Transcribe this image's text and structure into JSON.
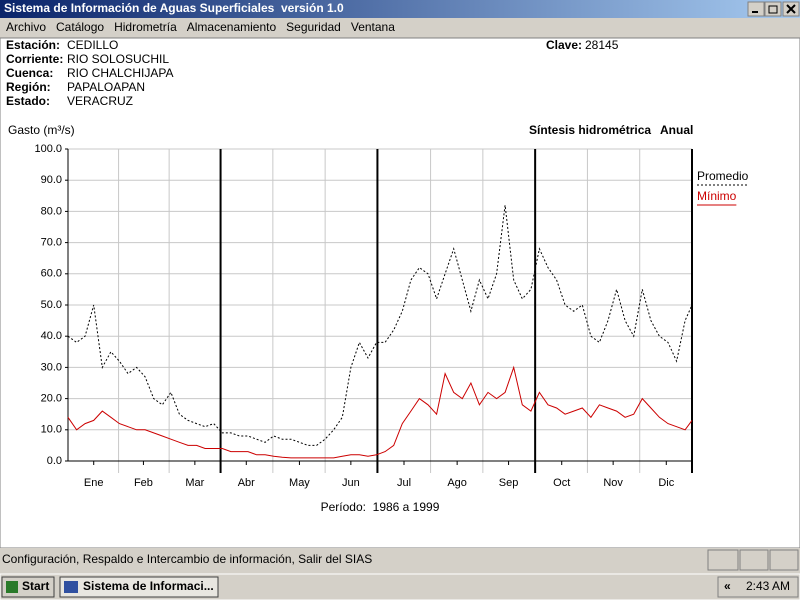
{
  "window": {
    "title": "Sistema de Información de Aguas Superficiales  versión 1.0",
    "menu": [
      "Archivo",
      "Catálogo",
      "Hidrometría",
      "Almacenamiento",
      "Seguridad",
      "Ventana"
    ],
    "status": "Configuración, Respaldo e Intercambio de información, Salir del SIAS",
    "taskbar": {
      "start": "Start",
      "task": "Sistema de Informaci...",
      "clock": "2:43 AM"
    }
  },
  "info": {
    "fields": [
      {
        "label": "Estación:",
        "value": "CEDILLO"
      },
      {
        "label": "Corriente:",
        "value": "RIO SOLOSUCHIL"
      },
      {
        "label": "Cuenca:",
        "value": "RIO CHALCHIJAPA"
      },
      {
        "label": "Región:",
        "value": "PAPALOAPAN"
      },
      {
        "label": "Estado:",
        "value": "VERACRUZ"
      }
    ],
    "clave": {
      "label": "Clave:",
      "value": "28145"
    }
  },
  "chart_data": {
    "type": "line",
    "title": "Síntesis hidrométrica",
    "subtitle": "Anual",
    "y_label": "Gasto (m³/s)",
    "footer": "Período:  1986 a 1999",
    "x": [
      1,
      6,
      11,
      16,
      21,
      26,
      31,
      36,
      41,
      46,
      51,
      56,
      61,
      66,
      71,
      76,
      81,
      86,
      91,
      96,
      101,
      106,
      111,
      116,
      121,
      126,
      131,
      136,
      141,
      146,
      151,
      156,
      161,
      166,
      171,
      176,
      181,
      186,
      191,
      196,
      201,
      206,
      211,
      216,
      221,
      226,
      231,
      236,
      241,
      246,
      251,
      256,
      261,
      266,
      271,
      276,
      281,
      286,
      291,
      296,
      301,
      306,
      311,
      316,
      321,
      326,
      331,
      336,
      341,
      346,
      351,
      356,
      361,
      365
    ],
    "xlim": [
      1,
      365
    ],
    "xticks": [
      {
        "value": 16,
        "label": "Ene"
      },
      {
        "value": 45,
        "label": "Feb"
      },
      {
        "value": 75,
        "label": "Mar"
      },
      {
        "value": 105,
        "label": "Abr"
      },
      {
        "value": 136,
        "label": "May"
      },
      {
        "value": 166,
        "label": "Jun"
      },
      {
        "value": 197,
        "label": "Jul"
      },
      {
        "value": 228,
        "label": "Ago"
      },
      {
        "value": 258,
        "label": "Sep"
      },
      {
        "value": 289,
        "label": "Oct"
      },
      {
        "value": 319,
        "label": "Nov"
      },
      {
        "value": 350,
        "label": "Dic"
      }
    ],
    "ylim": [
      0,
      100
    ],
    "yticks": [
      {
        "value": 0,
        "label": "0.0"
      },
      {
        "value": 10,
        "label": "10.0"
      },
      {
        "value": 20,
        "label": "20.0"
      },
      {
        "value": 30,
        "label": "30.0"
      },
      {
        "value": 40,
        "label": "40.0"
      },
      {
        "value": 50,
        "label": "50.0"
      },
      {
        "value": 60,
        "label": "60.0"
      },
      {
        "value": 70,
        "label": "70.0"
      },
      {
        "value": 80,
        "label": "80.0"
      },
      {
        "value": 90,
        "label": "90.0"
      },
      {
        "value": 100,
        "label": "100.0"
      }
    ],
    "grid": true,
    "series": [
      {
        "name": "Promedio",
        "color": "#000000",
        "line_style": "dashed",
        "values": [
          40,
          38,
          40,
          50,
          30,
          35,
          32,
          28,
          30,
          27,
          20,
          18,
          22,
          15,
          13,
          12,
          11,
          12,
          9,
          9,
          8,
          8,
          7,
          6,
          8,
          7,
          7,
          6,
          5,
          5,
          7,
          10,
          14,
          30,
          38,
          33,
          38,
          38,
          42,
          48,
          58,
          62,
          60,
          52,
          60,
          68,
          58,
          48,
          58,
          52,
          60,
          82,
          58,
          52,
          55,
          68,
          62,
          58,
          50,
          48,
          50,
          40,
          38,
          45,
          55,
          45,
          40,
          55,
          45,
          40,
          38,
          32,
          45,
          50
        ]
      },
      {
        "name": "Mínimo",
        "color": "#cc0000",
        "line_style": "solid",
        "values": [
          14,
          10,
          12,
          13,
          16,
          14,
          12,
          11,
          10,
          10,
          9,
          8,
          7,
          6,
          5,
          5,
          4,
          4,
          4,
          3,
          3,
          3,
          2,
          2,
          1.5,
          1.2,
          1,
          1,
          1,
          1,
          1,
          1,
          1.5,
          2,
          2,
          1.5,
          2,
          3,
          5,
          12,
          16,
          20,
          18,
          15,
          28,
          22,
          20,
          25,
          18,
          22,
          20,
          22,
          30,
          18,
          16,
          22,
          18,
          17,
          15,
          16,
          17,
          14,
          18,
          17,
          16,
          14,
          15,
          20,
          17,
          14,
          12,
          11,
          10,
          13
        ]
      }
    ]
  }
}
